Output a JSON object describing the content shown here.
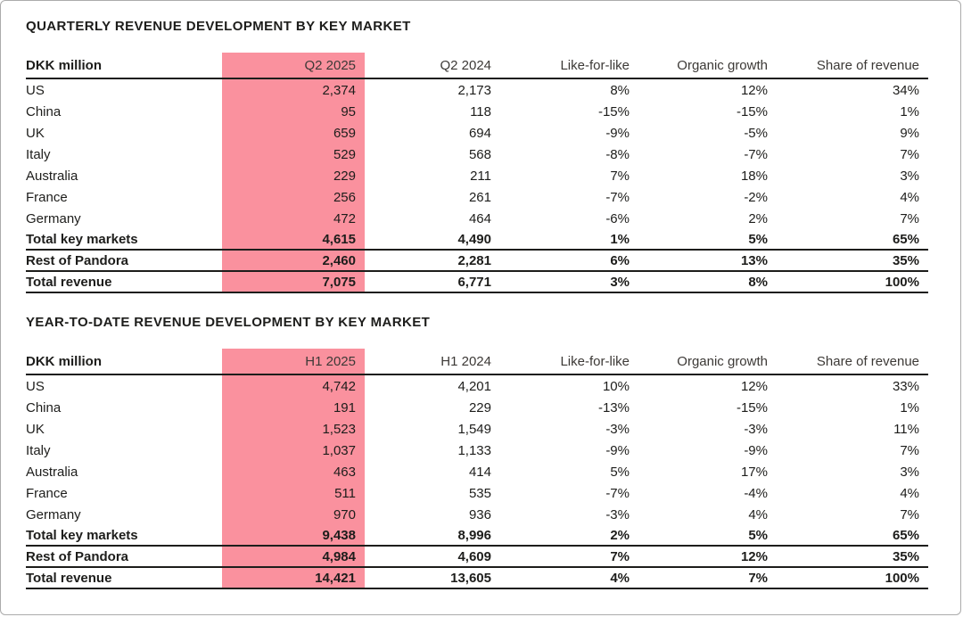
{
  "colors": {
    "highlight": "#FA919E",
    "text": "#1d1d1b",
    "header_text": "#3c3936",
    "rule": "#1d1d1b",
    "page_border": "#ababab"
  },
  "tables": [
    {
      "title": "QUARTERLY REVENUE DEVELOPMENT BY KEY MARKET",
      "unit_label": "DKK million",
      "columns": [
        "Q2 2025",
        "Q2 2024",
        "Like-for-like",
        "Organic growth",
        "Share of revenue"
      ],
      "highlight_column": "Q2 2025",
      "rows": [
        {
          "label": "US",
          "values": [
            "2,374",
            "2,173",
            "8%",
            "12%",
            "34%"
          ],
          "total": false
        },
        {
          "label": "China",
          "values": [
            "95",
            "118",
            "-15%",
            "-15%",
            "1%"
          ],
          "total": false
        },
        {
          "label": "UK",
          "values": [
            "659",
            "694",
            "-9%",
            "-5%",
            "9%"
          ],
          "total": false
        },
        {
          "label": "Italy",
          "values": [
            "529",
            "568",
            "-8%",
            "-7%",
            "7%"
          ],
          "total": false
        },
        {
          "label": "Australia",
          "values": [
            "229",
            "211",
            "7%",
            "18%",
            "3%"
          ],
          "total": false
        },
        {
          "label": "France",
          "values": [
            "256",
            "261",
            "-7%",
            "-2%",
            "4%"
          ],
          "total": false
        },
        {
          "label": "Germany",
          "values": [
            "472",
            "464",
            "-6%",
            "2%",
            "7%"
          ],
          "total": false
        },
        {
          "label": "Total key markets",
          "values": [
            "4,615",
            "4,490",
            "1%",
            "5%",
            "65%"
          ],
          "total": true
        },
        {
          "label": "Rest of Pandora",
          "values": [
            "2,460",
            "2,281",
            "6%",
            "13%",
            "35%"
          ],
          "total": true
        },
        {
          "label": "Total revenue",
          "values": [
            "7,075",
            "6,771",
            "3%",
            "8%",
            "100%"
          ],
          "total": true
        }
      ]
    },
    {
      "title": "YEAR-TO-DATE REVENUE DEVELOPMENT BY KEY MARKET",
      "unit_label": "DKK million",
      "columns": [
        "H1 2025",
        "H1 2024",
        "Like-for-like",
        "Organic growth",
        "Share of revenue"
      ],
      "highlight_column": "H1 2025",
      "rows": [
        {
          "label": "US",
          "values": [
            "4,742",
            "4,201",
            "10%",
            "12%",
            "33%"
          ],
          "total": false
        },
        {
          "label": "China",
          "values": [
            "191",
            "229",
            "-13%",
            "-15%",
            "1%"
          ],
          "total": false
        },
        {
          "label": "UK",
          "values": [
            "1,523",
            "1,549",
            "-3%",
            "-3%",
            "11%"
          ],
          "total": false
        },
        {
          "label": "Italy",
          "values": [
            "1,037",
            "1,133",
            "-9%",
            "-9%",
            "7%"
          ],
          "total": false
        },
        {
          "label": "Australia",
          "values": [
            "463",
            "414",
            "5%",
            "17%",
            "3%"
          ],
          "total": false
        },
        {
          "label": "France",
          "values": [
            "511",
            "535",
            "-7%",
            "-4%",
            "4%"
          ],
          "total": false
        },
        {
          "label": "Germany",
          "values": [
            "970",
            "936",
            "-3%",
            "4%",
            "7%"
          ],
          "total": false
        },
        {
          "label": "Total key markets",
          "values": [
            "9,438",
            "8,996",
            "2%",
            "5%",
            "65%"
          ],
          "total": true
        },
        {
          "label": "Rest of Pandora",
          "values": [
            "4,984",
            "4,609",
            "7%",
            "12%",
            "35%"
          ],
          "total": true
        },
        {
          "label": "Total revenue",
          "values": [
            "14,421",
            "13,605",
            "4%",
            "7%",
            "100%"
          ],
          "total": true
        }
      ]
    }
  ]
}
